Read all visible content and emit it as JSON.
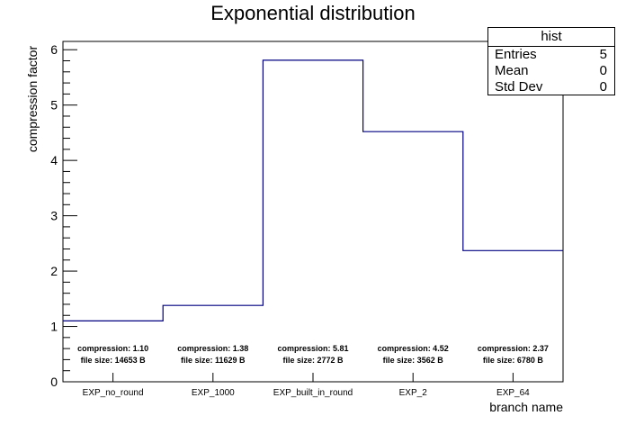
{
  "chart_data": {
    "type": "bar",
    "title": "Exponential distribution",
    "xlabel": "branch name",
    "ylabel": "compression factor",
    "ylim": [
      0,
      6.15
    ],
    "yticks": [
      "0",
      "1",
      "2",
      "3",
      "4",
      "5",
      "6"
    ],
    "categories": [
      "EXP_no_round",
      "EXP_1000",
      "EXP_built_in_round",
      "EXP_2",
      "EXP_64"
    ],
    "values": [
      1.1,
      1.38,
      5.81,
      4.52,
      2.37
    ],
    "annotations": [
      {
        "compression": "compression: 1.10",
        "file_size": "file size: 14653 B"
      },
      {
        "compression": "compression: 1.38",
        "file_size": "file size: 11629 B"
      },
      {
        "compression": "compression: 5.81",
        "file_size": "file size: 2772 B"
      },
      {
        "compression": "compression: 4.52",
        "file_size": "file size: 3562 B"
      },
      {
        "compression": "compression: 2.37",
        "file_size": "file size: 6780 B"
      }
    ],
    "line_color": "#000080",
    "legend": "top-right"
  },
  "stats": {
    "title": "hist",
    "rows": [
      {
        "label": "Entries",
        "value": "5"
      },
      {
        "label": "Mean",
        "value": "0"
      },
      {
        "label": "Std Dev",
        "value": "0"
      }
    ]
  }
}
